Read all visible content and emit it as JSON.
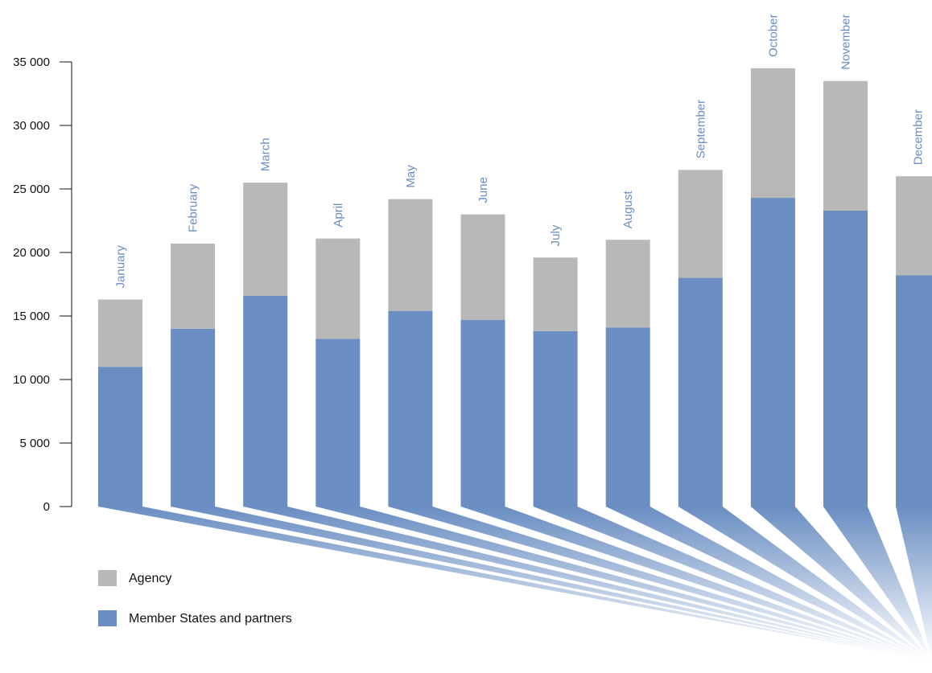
{
  "chart_data": {
    "type": "bar",
    "stacked": true,
    "categories": [
      "January",
      "February",
      "March",
      "April",
      "May",
      "June",
      "July",
      "August",
      "September",
      "October",
      "November",
      "December"
    ],
    "series": [
      {
        "name": "Member States and partners",
        "color": "#6a8ec2",
        "values": [
          11000,
          14000,
          16600,
          13200,
          15400,
          14700,
          13800,
          14100,
          18000,
          24300,
          23300,
          18200
        ]
      },
      {
        "name": "Agency",
        "color": "#b8b8b8",
        "values": [
          5300,
          6700,
          8900,
          7900,
          8800,
          8300,
          5800,
          6900,
          8500,
          10200,
          10200,
          7800
        ]
      }
    ],
    "ylim": [
      0,
      35000
    ],
    "yticks": [
      0,
      5000,
      10000,
      15000,
      20000,
      25000,
      30000,
      35000
    ],
    "ytick_labels": [
      "0",
      "5 000",
      "10 000",
      "15 000",
      "20 000",
      "25 000",
      "30 000",
      "35 000"
    ],
    "legend": {
      "position": "bottom-left",
      "items": [
        {
          "label": "Agency",
          "color": "#b8b8b8"
        },
        {
          "label": "Member States and partners",
          "color": "#6a8ec2"
        }
      ]
    },
    "category_label_color": "#6a8ec2",
    "decoration_color": "#6a8ec2",
    "grid": false
  }
}
